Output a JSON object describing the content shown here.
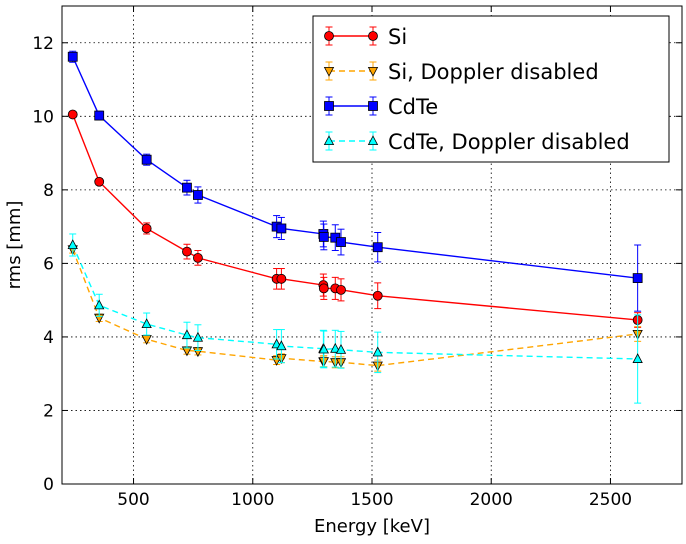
{
  "chart_data": {
    "type": "line",
    "title": "",
    "xlabel": "Energy [keV]",
    "ylabel": "rms [mm]",
    "xlim": [
      200,
      2800
    ],
    "ylim": [
      0,
      13
    ],
    "xticks": [
      500,
      1000,
      1500,
      2000,
      2500
    ],
    "yticks": [
      0,
      2,
      4,
      6,
      8,
      10,
      12
    ],
    "grid": true,
    "legend_position": "top-right",
    "series": [
      {
        "name": "Si",
        "color": "#ff0000",
        "marker": "circle",
        "linestyle": "solid",
        "x": [
          245,
          356,
          555,
          724,
          770,
          1100,
          1120,
          1296,
          1298,
          1346,
          1370,
          1524,
          2614
        ],
        "y": [
          10.05,
          8.22,
          6.95,
          6.32,
          6.15,
          5.58,
          5.58,
          5.41,
          5.32,
          5.32,
          5.28,
          5.12,
          4.46
        ],
        "yerr": [
          0.05,
          0.08,
          0.15,
          0.2,
          0.2,
          0.28,
          0.28,
          0.3,
          0.3,
          0.3,
          0.3,
          0.35,
          0.2
        ]
      },
      {
        "name": "Si, Doppler disabled",
        "color": "#ffa500",
        "marker": "triangle-down",
        "linestyle": "dashed",
        "x": [
          245,
          356,
          555,
          724,
          770,
          1100,
          1120,
          1296,
          1298,
          1346,
          1370,
          1524,
          2614
        ],
        "y": [
          6.38,
          4.52,
          3.94,
          3.63,
          3.61,
          3.37,
          3.42,
          3.33,
          3.34,
          3.31,
          3.31,
          3.22,
          4.08
        ],
        "yerr": [
          0.1,
          0.1,
          0.1,
          0.1,
          0.1,
          0.12,
          0.12,
          0.15,
          0.15,
          0.15,
          0.15,
          0.15,
          0.2
        ]
      },
      {
        "name": "CdTe",
        "color": "#0000ff",
        "marker": "square",
        "linestyle": "solid",
        "x": [
          245,
          356,
          555,
          724,
          770,
          1100,
          1120,
          1296,
          1298,
          1346,
          1370,
          1524,
          2614
        ],
        "y": [
          11.62,
          10.02,
          8.82,
          8.06,
          7.86,
          7.0,
          6.95,
          6.8,
          6.72,
          6.7,
          6.58,
          6.44,
          5.6
        ],
        "yerr": [
          0.15,
          0.12,
          0.15,
          0.2,
          0.22,
          0.3,
          0.3,
          0.35,
          0.35,
          0.35,
          0.35,
          0.4,
          0.9
        ]
      },
      {
        "name": "CdTe, Doppler disabled",
        "color": "#00ffff",
        "marker": "triangle-up",
        "linestyle": "dashed",
        "x": [
          245,
          356,
          555,
          724,
          770,
          1100,
          1120,
          1296,
          1298,
          1346,
          1370,
          1524,
          2614
        ],
        "y": [
          6.5,
          4.86,
          4.35,
          4.05,
          3.98,
          3.8,
          3.75,
          3.68,
          3.66,
          3.68,
          3.65,
          3.58,
          3.4
        ],
        "yerr": [
          0.3,
          0.3,
          0.3,
          0.35,
          0.35,
          0.4,
          0.45,
          0.5,
          0.5,
          0.5,
          0.5,
          0.55,
          1.2
        ]
      }
    ]
  }
}
